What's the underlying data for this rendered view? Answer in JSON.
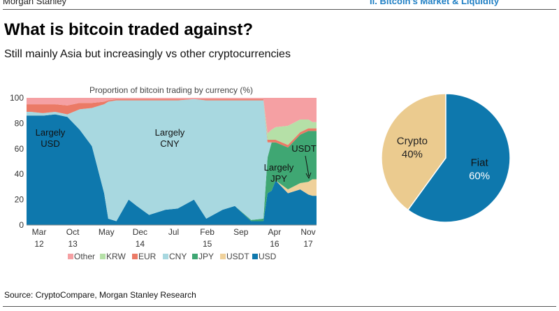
{
  "header": {
    "brand": "Morgan Stanley",
    "section": "II. Bitcoin's Market & Liquidity",
    "title": "What is bitcoin traded against?",
    "subtitle": "Still mainly Asia but increasingly vs other cryptocurrencies"
  },
  "footer": {
    "source": "Source: CryptoCompare, Morgan Stanley Research"
  },
  "colors": {
    "Other": "#f5a0a3",
    "KRW": "#b5e0a7",
    "EUR": "#eb7a66",
    "CNY": "#a8d8e0",
    "JPY": "#3fa773",
    "USDT": "#efd19b",
    "USD": "#0e78ad",
    "Crypto": "#ebcb8f",
    "Fiat": "#0e78ad"
  },
  "chart_data": [
    {
      "type": "area",
      "title": "Proportion of bitcoin trading by currency (%)",
      "ylim": [
        0,
        100
      ],
      "yticks": [
        "0",
        "20",
        "40",
        "60",
        "80",
        "100"
      ],
      "xtick_labels": [
        {
          "month": "Mar",
          "year": "12"
        },
        {
          "month": "Oct",
          "year": "13"
        },
        {
          "month": "May",
          "year": ""
        },
        {
          "month": "Dec",
          "year": "14"
        },
        {
          "month": "Jul",
          "year": ""
        },
        {
          "month": "Feb",
          "year": "15"
        },
        {
          "month": "Sep",
          "year": ""
        },
        {
          "month": "Apr",
          "year": "16"
        },
        {
          "month": "Nov",
          "year": "17"
        }
      ],
      "x": [
        "2012-03",
        "2012-06",
        "2012-09",
        "2012-12",
        "2013-03",
        "2013-06",
        "2013-09",
        "2013-10",
        "2013-12",
        "2014-03",
        "2014-05",
        "2014-08",
        "2014-12",
        "2015-03",
        "2015-07",
        "2015-10",
        "2016-02",
        "2016-05",
        "2016-09",
        "2016-12",
        "2017-01",
        "2017-02",
        "2017-03",
        "2017-06",
        "2017-09",
        "2017-11",
        "2017-12"
      ],
      "series": [
        {
          "name": "USD",
          "values": [
            86,
            86,
            87,
            85,
            75,
            62,
            25,
            5,
            3,
            20,
            15,
            8,
            12,
            13,
            20,
            5,
            12,
            15,
            3,
            3,
            25,
            27,
            35,
            25,
            28,
            24,
            23
          ]
        },
        {
          "name": "USDT",
          "values": [
            0,
            0,
            0,
            0,
            0,
            0,
            0,
            0,
            0,
            0,
            0,
            0,
            0,
            0,
            0,
            0,
            0,
            0,
            0,
            0,
            0,
            0,
            0,
            3,
            5,
            10,
            13
          ]
        },
        {
          "name": "JPY",
          "values": [
            0,
            0,
            0,
            0,
            0,
            0,
            0,
            0,
            0,
            0,
            0,
            0,
            0,
            0,
            0,
            0,
            0,
            0,
            1,
            2,
            28,
            38,
            30,
            33,
            38,
            40,
            38
          ]
        },
        {
          "name": "CNY",
          "values": [
            3,
            2,
            2,
            2,
            16,
            30,
            70,
            92,
            95,
            78,
            83,
            90,
            86,
            85,
            79,
            93,
            86,
            83,
            94,
            93,
            12,
            0,
            0,
            0,
            0,
            0,
            0
          ]
        },
        {
          "name": "EUR",
          "values": [
            6,
            7,
            6,
            7,
            5,
            4,
            2,
            1,
            1,
            1,
            1,
            1,
            1,
            1,
            0,
            1,
            1,
            1,
            1,
            1,
            2,
            2,
            2,
            2,
            2,
            2,
            2
          ]
        },
        {
          "name": "KRW",
          "values": [
            0,
            0,
            0,
            0,
            0,
            0,
            0,
            0,
            0,
            0,
            0,
            0,
            0,
            0,
            0,
            0,
            0,
            0,
            0,
            0,
            5,
            8,
            10,
            15,
            10,
            7,
            5
          ]
        },
        {
          "name": "Other",
          "values": [
            5,
            5,
            5,
            6,
            4,
            4,
            3,
            2,
            1,
            1,
            1,
            1,
            1,
            1,
            1,
            1,
            1,
            1,
            1,
            1,
            28,
            25,
            23,
            22,
            17,
            17,
            19
          ]
        }
      ],
      "legend": [
        "Other",
        "KRW",
        "EUR",
        "CNY",
        "JPY",
        "USDT",
        "USD"
      ],
      "annotations": [
        {
          "label": "Largely",
          "sub": "USD"
        },
        {
          "label": "Largely",
          "sub": "CNY"
        },
        {
          "label": "Largely",
          "sub": "JPY"
        },
        {
          "label": "USDT"
        }
      ]
    },
    {
      "type": "pie",
      "slices": [
        {
          "name": "Crypto",
          "value": 40,
          "label": "40%"
        },
        {
          "name": "Fiat",
          "value": 60,
          "label": "60%"
        }
      ]
    }
  ]
}
